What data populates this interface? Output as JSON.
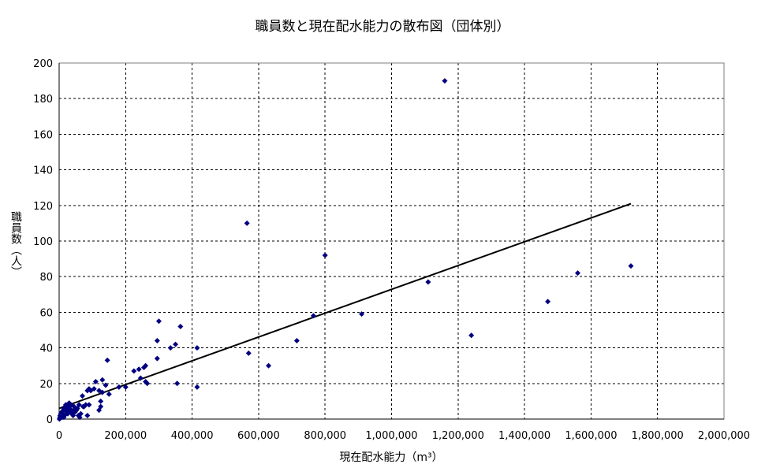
{
  "chart_data": {
    "type": "scatter",
    "title": "職員数と現在配水能力の散布図（団体別）",
    "xlabel": "現在配水能力（m³）",
    "ylabel": "職員数（人）",
    "xlim": [
      0,
      2000000
    ],
    "ylim": [
      0,
      200
    ],
    "x_ticks": [
      0,
      200000,
      400000,
      600000,
      800000,
      1000000,
      1200000,
      1400000,
      1600000,
      1800000,
      2000000
    ],
    "x_tick_labels": [
      "0",
      "200,000",
      "400,000",
      "600,000",
      "800,000",
      "1,000,000",
      "1,200,000",
      "1,400,000",
      "1,600,000",
      "1,800,000",
      "2,000,000"
    ],
    "y_ticks": [
      0,
      20,
      40,
      60,
      80,
      100,
      120,
      140,
      160,
      180,
      200
    ],
    "y_tick_labels": [
      "0",
      "20",
      "40",
      "60",
      "80",
      "100",
      "120",
      "140",
      "160",
      "180",
      "200"
    ],
    "grid": true,
    "marker_color": "#000080",
    "trendline": {
      "x": [
        0,
        1720000
      ],
      "y": [
        6,
        121
      ]
    },
    "series": [
      {
        "points": [
          [
            1160000,
            190
          ],
          [
            565000,
            110
          ],
          [
            800000,
            92
          ],
          [
            1720000,
            86
          ],
          [
            1560000,
            82
          ],
          [
            1110000,
            77
          ],
          [
            1470000,
            66
          ],
          [
            910000,
            59
          ],
          [
            765000,
            58
          ],
          [
            1240000,
            47
          ],
          [
            715000,
            44
          ],
          [
            570000,
            37
          ],
          [
            630000,
            30
          ],
          [
            415000,
            40
          ],
          [
            415000,
            18
          ],
          [
            300000,
            55
          ],
          [
            365000,
            52
          ],
          [
            295000,
            44
          ],
          [
            350000,
            42
          ],
          [
            335000,
            40
          ],
          [
            295000,
            34
          ],
          [
            355000,
            20
          ],
          [
            145000,
            33
          ],
          [
            130000,
            22
          ],
          [
            225000,
            27
          ],
          [
            240000,
            28
          ],
          [
            255000,
            29
          ],
          [
            260000,
            30
          ],
          [
            245000,
            23
          ],
          [
            260000,
            21
          ],
          [
            265000,
            20
          ],
          [
            110000,
            21
          ],
          [
            140000,
            19
          ],
          [
            120000,
            16
          ],
          [
            130000,
            15
          ],
          [
            150000,
            14
          ],
          [
            180000,
            18
          ],
          [
            200000,
            18
          ],
          [
            105000,
            17
          ],
          [
            95000,
            16
          ],
          [
            90000,
            17
          ],
          [
            85000,
            16
          ],
          [
            125000,
            10
          ],
          [
            125000,
            7
          ],
          [
            120000,
            5
          ],
          [
            90000,
            8
          ],
          [
            80000,
            8
          ],
          [
            75000,
            7
          ],
          [
            70000,
            13
          ],
          [
            60000,
            8
          ],
          [
            55000,
            6
          ],
          [
            50000,
            6
          ],
          [
            45000,
            7
          ],
          [
            40000,
            4
          ],
          [
            35000,
            5
          ],
          [
            30000,
            9
          ],
          [
            28000,
            8
          ],
          [
            25000,
            7
          ],
          [
            20000,
            8
          ],
          [
            18000,
            7
          ],
          [
            15000,
            6
          ],
          [
            12000,
            5
          ],
          [
            10000,
            3
          ],
          [
            8000,
            4
          ],
          [
            6000,
            2
          ],
          [
            5000,
            3
          ],
          [
            4000,
            1
          ],
          [
            3000,
            2
          ],
          [
            2000,
            1
          ],
          [
            1000,
            0
          ],
          [
            22000,
            4
          ],
          [
            32000,
            6
          ],
          [
            38000,
            3
          ],
          [
            42000,
            2
          ],
          [
            48000,
            4
          ],
          [
            58000,
            2
          ],
          [
            65000,
            3
          ],
          [
            85000,
            2
          ],
          [
            16000,
            2
          ],
          [
            14000,
            1
          ],
          [
            26000,
            3
          ],
          [
            36000,
            8
          ],
          [
            44000,
            5
          ],
          [
            52000,
            5
          ],
          [
            62000,
            1
          ],
          [
            9000,
            1
          ],
          [
            11000,
            2
          ],
          [
            24000,
            5
          ],
          [
            33000,
            4
          ],
          [
            72000,
            7
          ]
        ]
      }
    ]
  }
}
